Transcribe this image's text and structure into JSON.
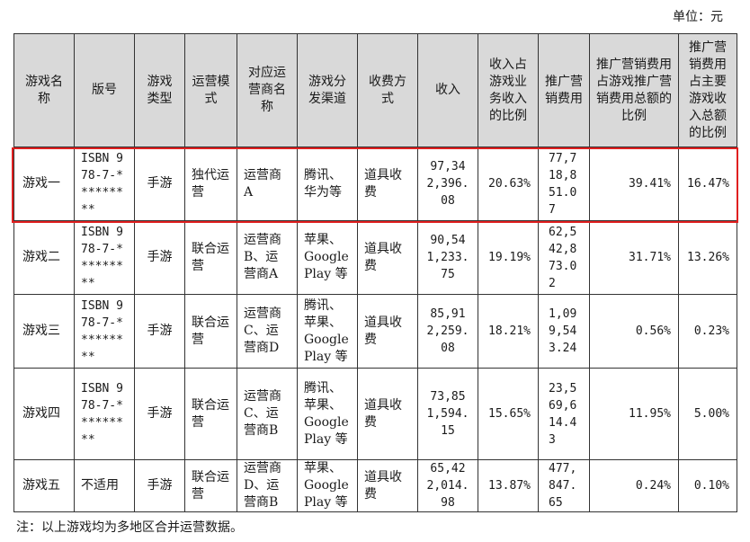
{
  "unit_label": "单位：元",
  "headers": [
    "游戏名称",
    "版号",
    "游戏类型",
    "运营模式",
    "对应运营商名称",
    "游戏分发渠道",
    "收费方式",
    "收入",
    "收入占游戏业务收入的比例",
    "推广营销费用",
    "推广营销费用占游戏推广营销费用总额的比例",
    "推广营销费用占主要游戏收入总额的比例"
  ],
  "rows": [
    {
      "name": "游戏一",
      "isbn": "ISBN 978-7-*********",
      "type": "手游",
      "mode": "独代运营",
      "operator": "运营商A",
      "channel": "腾讯、华为等",
      "fee_method": "道具收费",
      "revenue": "97,342,396.08",
      "revenue_ratio": "20.63%",
      "marketing": "77,718,851.07",
      "marketing_ratio": "39.41%",
      "marketing_rev_ratio": "16.47%"
    },
    {
      "name": "游戏二",
      "isbn": "ISBN 978-7-*********",
      "type": "手游",
      "mode": "联合运营",
      "operator": "运营商B、运营商A",
      "channel": "苹果、Google Play 等",
      "fee_method": "道具收费",
      "revenue": "90,541,233.75",
      "revenue_ratio": "19.19%",
      "marketing": "62,542,873.02",
      "marketing_ratio": "31.71%",
      "marketing_rev_ratio": "13.26%"
    },
    {
      "name": "游戏三",
      "isbn": "ISBN 978-7-*********",
      "type": "手游",
      "mode": "联合运营",
      "operator": "运营商C、运营商D",
      "channel": "腾讯、苹果、Google Play 等",
      "fee_method": "道具收费",
      "revenue": "85,912,259.08",
      "revenue_ratio": "18.21%",
      "marketing": "1,099,543.24",
      "marketing_ratio": "0.56%",
      "marketing_rev_ratio": "0.23%"
    },
    {
      "name": "游戏四",
      "isbn": "ISBN 978-7-*********",
      "type": "手游",
      "mode": "联合运营",
      "operator": "运营商C、运营商B",
      "channel": "腾讯、苹果、Google Play 等",
      "fee_method": "道具收费",
      "revenue": "73,851,594.15",
      "revenue_ratio": "15.65%",
      "marketing": "23,569,614.43",
      "marketing_ratio": "11.95%",
      "marketing_rev_ratio": "5.00%"
    },
    {
      "name": "游戏五",
      "isbn": "不适用",
      "type": "手游",
      "mode": "联合运营",
      "operator": "运营商D、运营商B",
      "channel": "苹果、Google Play 等",
      "fee_method": "道具收费",
      "revenue": "65,422,014.98",
      "revenue_ratio": "13.87%",
      "marketing": "477,847.65",
      "marketing_ratio": "0.24%",
      "marketing_rev_ratio": "0.10%"
    }
  ],
  "note": "注：以上游戏均为多地区合并运营数据。",
  "highlight_color": "#e02020"
}
